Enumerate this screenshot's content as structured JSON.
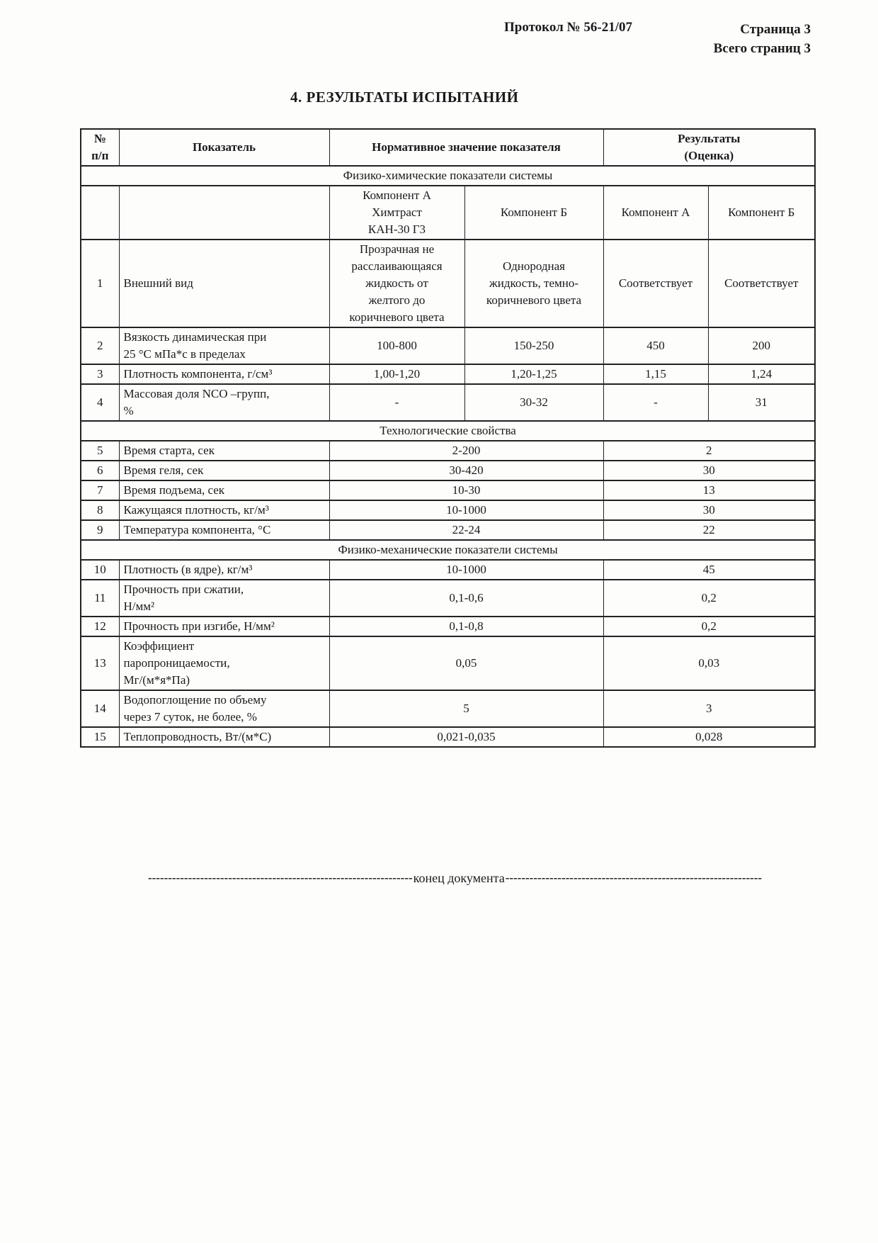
{
  "page": {
    "protocol": "Протокол № 56-21/07",
    "page_num": "Страница 3",
    "total_pages": "Всего страниц 3",
    "title": "4.  РЕЗУЛЬТАТЫ ИСПЫТАНИЙ"
  },
  "table": {
    "header": {
      "num": [
        "№",
        "п/п"
      ],
      "indicator": "Показатель",
      "normative": "Нормативное значение показателя",
      "results": [
        "Результаты",
        "(Оценка)"
      ]
    },
    "sections": {
      "phys_chem": "Физико-химические показатели системы",
      "tech": "Технологические свойства",
      "phys_mech": "Физико-механические показатели системы"
    },
    "subheader": {
      "norm_a": [
        "Компонент А",
        "Химтраст",
        "КАН-30 Г3"
      ],
      "norm_b": "Компонент Б",
      "res_a": "Компонент А",
      "res_b": "Компонент Б"
    },
    "rows": {
      "r1": {
        "num": "1",
        "name": "Внешний вид",
        "norm_a": [
          "Прозрачная не",
          "расслаивающаяся",
          "жидкость от",
          "желтого до",
          "коричневого цвета"
        ],
        "norm_b": [
          "Однородная",
          "жидкость, темно-",
          "коричневого цвета"
        ],
        "res_a": "Соответствует",
        "res_b": "Соответствует"
      },
      "r2": {
        "num": "2",
        "name": [
          "Вязкость динамическая при",
          "25 °С мПа*с в пределах"
        ],
        "norm_a": "100-800",
        "norm_b": "150-250",
        "res_a": "450",
        "res_b": "200"
      },
      "r3": {
        "num": "3",
        "name": "Плотность компонента, г/см³",
        "norm_a": "1,00-1,20",
        "norm_b": "1,20-1,25",
        "res_a": "1,15",
        "res_b": "1,24"
      },
      "r4": {
        "num": "4",
        "name": [
          "Массовая доля NCO –групп,",
          "%"
        ],
        "norm_a": "-",
        "norm_b": "30-32",
        "res_a": "-",
        "res_b": "31"
      },
      "r5": {
        "num": "5",
        "name": "Время старта, сек",
        "norm": "2-200",
        "res": "2"
      },
      "r6": {
        "num": "6",
        "name": "Время геля, сек",
        "norm": "30-420",
        "res": "30"
      },
      "r7": {
        "num": "7",
        "name": "Время подъема, сек",
        "norm": "10-30",
        "res": "13"
      },
      "r8": {
        "num": "8",
        "name": "Кажущаяся плотность, кг/м³",
        "norm": "10-1000",
        "res": "30"
      },
      "r9": {
        "num": "9",
        "name": "Температура компонента, °С",
        "norm": "22-24",
        "res": "22"
      },
      "r10": {
        "num": "10",
        "name": "Плотность (в ядре), кг/м³",
        "norm": "10-1000",
        "res": "45"
      },
      "r11": {
        "num": "11",
        "name": [
          "Прочность при сжатии,",
          "Н/мм²"
        ],
        "norm": "0,1-0,6",
        "res": "0,2"
      },
      "r12": {
        "num": "12",
        "name": "Прочность при изгибе, Н/мм²",
        "norm": "0,1-0,8",
        "res": "0,2"
      },
      "r13": {
        "num": "13",
        "name": [
          "Коэффициент",
          "паропроницаемости,",
          "Мг/(м*я*Па)"
        ],
        "norm": "0,05",
        "res": "0,03"
      },
      "r14": {
        "num": "14",
        "name": [
          "Водопоглощение по объему",
          "через 7 суток, не более, %"
        ],
        "norm": "5",
        "res": "3"
      },
      "r15": {
        "num": "15",
        "name": "Теплопроводность, Вт/(м*С)",
        "norm": "0,021-0,035",
        "res": "0,028"
      }
    }
  },
  "footer": {
    "dashes_left": "------------------------------------------------------------------",
    "label": "конец документа",
    "dashes_right": "----------------------------------------------------------------"
  }
}
